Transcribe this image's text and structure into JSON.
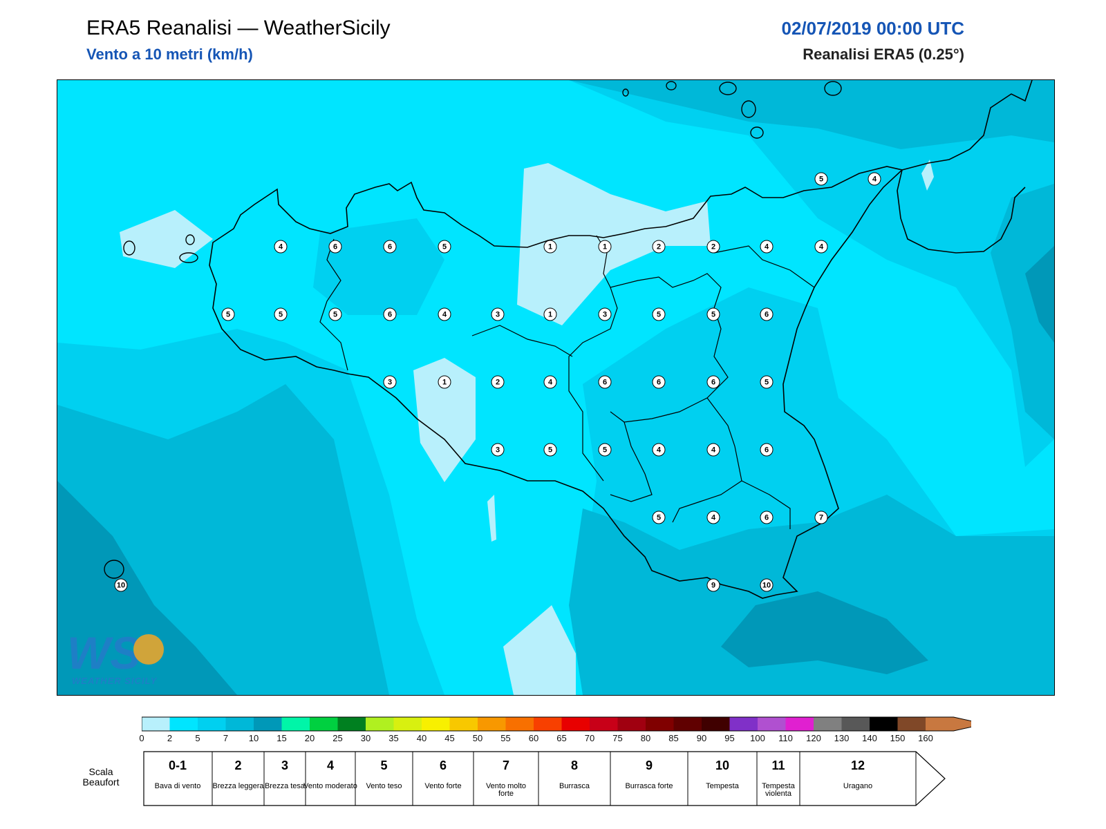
{
  "header": {
    "title": "ERA5 Reanalisi — WeatherSicily",
    "subtitle": "Vento a 10 metri (km/h)",
    "datetime": "02/07/2019 00:00 UTC",
    "model": "Reanalisi ERA5 (0.25°)"
  },
  "logo": {
    "text": "WS",
    "subtext": "WEATHER SICILY"
  },
  "colorbar": {
    "ticks": [
      "0",
      "2",
      "5",
      "7",
      "10",
      "15",
      "20",
      "25",
      "30",
      "35",
      "40",
      "45",
      "50",
      "55",
      "60",
      "65",
      "70",
      "75",
      "80",
      "85",
      "90",
      "95",
      "100",
      "110",
      "120",
      "130",
      "140",
      "150",
      "160"
    ],
    "colors": [
      "#b8f0fc",
      "#00e5ff",
      "#00d0f0",
      "#00b8d8",
      "#0098b8",
      "#00f5a8",
      "#00d040",
      "#008020",
      "#b0f020",
      "#d8f010",
      "#f8f000",
      "#f8c800",
      "#f89800",
      "#f87000",
      "#f84000",
      "#e80000",
      "#c80018",
      "#a00010",
      "#800000",
      "#600000",
      "#400000",
      "#8030c8",
      "#b050d0",
      "#e020d0",
      "#808080",
      "#585858",
      "#000000",
      "#804828",
      "#c87840"
    ],
    "colors_note": ""
  },
  "beaufort": {
    "label": "Scala Beaufort",
    "classes": [
      {
        "num": "0-1",
        "desc": "Bava di vento"
      },
      {
        "num": "2",
        "desc": "Brezza leggera"
      },
      {
        "num": "3",
        "desc": "Brezza tesa"
      },
      {
        "num": "4",
        "desc": "Vento moderato"
      },
      {
        "num": "5",
        "desc": "Vento teso"
      },
      {
        "num": "6",
        "desc": "Vento forte"
      },
      {
        "num": "7",
        "desc": "Vento molto forte"
      },
      {
        "num": "8",
        "desc": "Burrasca"
      },
      {
        "num": "9",
        "desc": "Burrasca forte"
      },
      {
        "num": "10",
        "desc": "Tempesta"
      },
      {
        "num": "11",
        "desc": "Tempesta violenta"
      },
      {
        "num": "12",
        "desc": "Uragano"
      }
    ]
  },
  "stations": [
    {
      "v": "4"
    },
    {
      "v": "6"
    },
    {
      "v": "6"
    },
    {
      "v": "5"
    },
    {
      "v": "1"
    },
    {
      "v": "1"
    },
    {
      "v": "2"
    },
    {
      "v": "2"
    },
    {
      "v": "4"
    },
    {
      "v": "4"
    },
    {
      "v": "5"
    },
    {
      "v": "5"
    },
    {
      "v": "5"
    },
    {
      "v": "6"
    },
    {
      "v": "4"
    },
    {
      "v": "3"
    },
    {
      "v": "1"
    },
    {
      "v": "3"
    },
    {
      "v": "5"
    },
    {
      "v": "5"
    },
    {
      "v": "6"
    },
    {
      "v": "3"
    },
    {
      "v": "1"
    },
    {
      "v": "2"
    },
    {
      "v": "4"
    },
    {
      "v": "6"
    },
    {
      "v": "6"
    },
    {
      "v": "6"
    },
    {
      "v": "5"
    },
    {
      "v": "3"
    },
    {
      "v": "5"
    },
    {
      "v": "5"
    },
    {
      "v": "4"
    },
    {
      "v": "4"
    },
    {
      "v": "6"
    },
    {
      "v": "5"
    },
    {
      "v": "4"
    },
    {
      "v": "6"
    },
    {
      "v": "7"
    },
    {
      "v": "9"
    },
    {
      "v": "10"
    },
    {
      "v": "10"
    },
    {
      "v": "5"
    },
    {
      "v": "4"
    }
  ]
}
